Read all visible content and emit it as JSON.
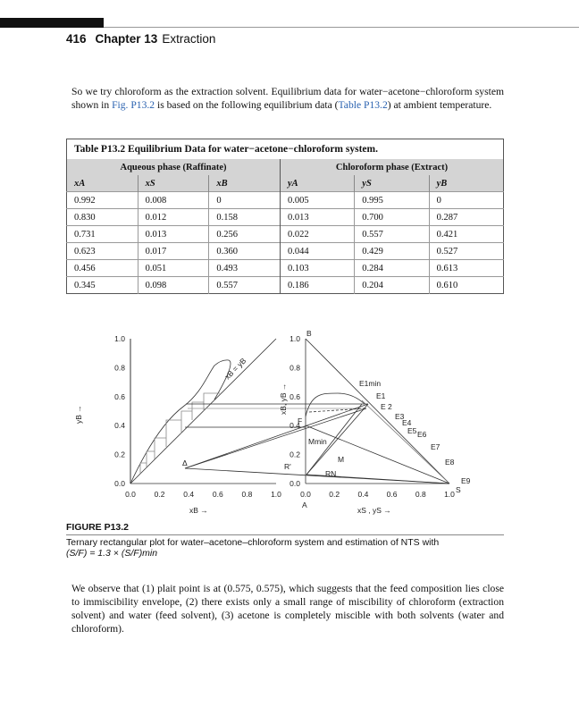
{
  "header": {
    "page_number": "416",
    "chapter": "Chapter 13",
    "chapter_title": "Extraction"
  },
  "intro": {
    "text1": "So we try chloroform as the extraction solvent. Equilibrium data for water−acetone−chloroform system shown in ",
    "fig_ref": "Fig. P13.2",
    "text2": " is based on the following equilibrium data (",
    "table_ref": "Table P13.2",
    "text3": ") at ambient temperature."
  },
  "table": {
    "caption": "Table P13.2  Equilibrium Data for water−acetone−chloroform system.",
    "group1": "Aqueous phase (Raffinate)",
    "group2": "Chloroform phase (Extract)",
    "columns": [
      "xA",
      "xS",
      "xB",
      "yA",
      "yS",
      "yB"
    ],
    "rows": [
      [
        "0.992",
        "0.008",
        "0",
        "0.005",
        "0.995",
        "0"
      ],
      [
        "0.830",
        "0.012",
        "0.158",
        "0.013",
        "0.700",
        "0.287"
      ],
      [
        "0.731",
        "0.013",
        "0.256",
        "0.022",
        "0.557",
        "0.421"
      ],
      [
        "0.623",
        "0.017",
        "0.360",
        "0.044",
        "0.429",
        "0.527"
      ],
      [
        "0.456",
        "0.051",
        "0.493",
        "0.103",
        "0.284",
        "0.613"
      ],
      [
        "0.345",
        "0.098",
        "0.557",
        "0.186",
        "0.204",
        "0.610"
      ]
    ]
  },
  "figure": {
    "ticks": [
      "0.0",
      "0.2",
      "0.4",
      "0.6",
      "0.8",
      "1.0"
    ],
    "left_xlabel": "xB →",
    "left_ylabel": "yB →",
    "diag_label": "xB = yB",
    "right_xlabel": "xS , yS →",
    "right_ylabel": "xB, yB →",
    "points": {
      "B": "B",
      "A": "A",
      "S": "S",
      "F": "F",
      "delta": "Δ",
      "M": "M",
      "Mmin": "Mmin",
      "RN": "RN",
      "Rp": "R'",
      "E1min": "E1min",
      "E1": "E1",
      "E2": "E 2",
      "E3": "E3",
      "E4": "E4",
      "E5": "E5",
      "E6": "E6",
      "E7": "E7",
      "E8": "E8",
      "E9": "E9"
    }
  },
  "figure_caption": {
    "label": "FIGURE P13.2",
    "text": "Ternary rectangular plot for water–acetone–chloroform system and estimation of NTS with",
    "formula": "(S/F) = 1.3 × (S/F)min"
  },
  "conclusion": "We observe that (1) plait point is at (0.575, 0.575), which suggests that the feed composition lies close to immiscibility envelope, (2) there exists only a small range of miscibility of chloroform (extraction solvent) and water (feed solvent), (3) acetone is completely miscible with both solvents (water and chloroform)."
}
